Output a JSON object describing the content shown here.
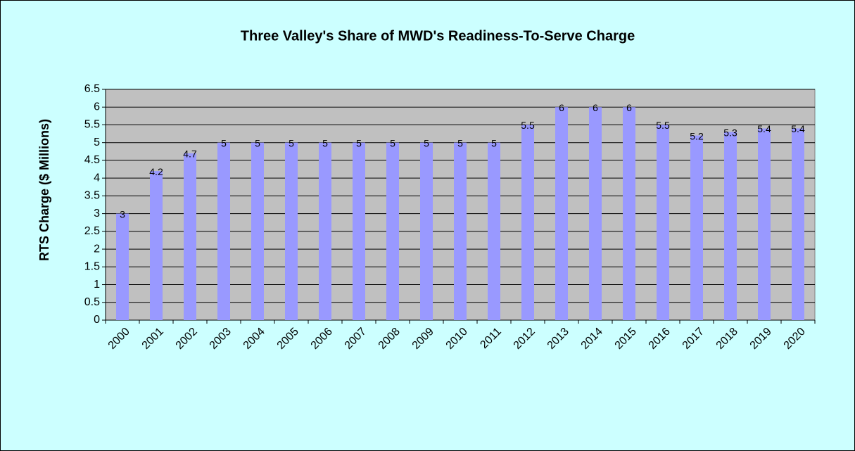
{
  "chart_data": {
    "type": "bar",
    "title": "Three Valley's Share of MWD's Readiness-To-Serve Charge",
    "y_label": "RTS Charge ($ Millions)",
    "categories": [
      "2000",
      "2001",
      "2002",
      "2003",
      "2004",
      "2005",
      "2006",
      "2007",
      "2008",
      "2009",
      "2010",
      "2011",
      "2012",
      "2013",
      "2014",
      "2015",
      "2016",
      "2017",
      "2018",
      "2019",
      "2020"
    ],
    "values": [
      3,
      4.2,
      4.7,
      5,
      5,
      5,
      5,
      5,
      5,
      5,
      5,
      5,
      5.5,
      6,
      6,
      6,
      5.5,
      5.2,
      5.3,
      5.4,
      5.4
    ],
    "color": "#9999ff",
    "ylim": [
      0,
      6.5
    ],
    "yticks": [
      0,
      0.5,
      1,
      1.5,
      2,
      2.5,
      3,
      3.5,
      4,
      4.5,
      5,
      5.5,
      6,
      6.5
    ],
    "grid": true
  }
}
